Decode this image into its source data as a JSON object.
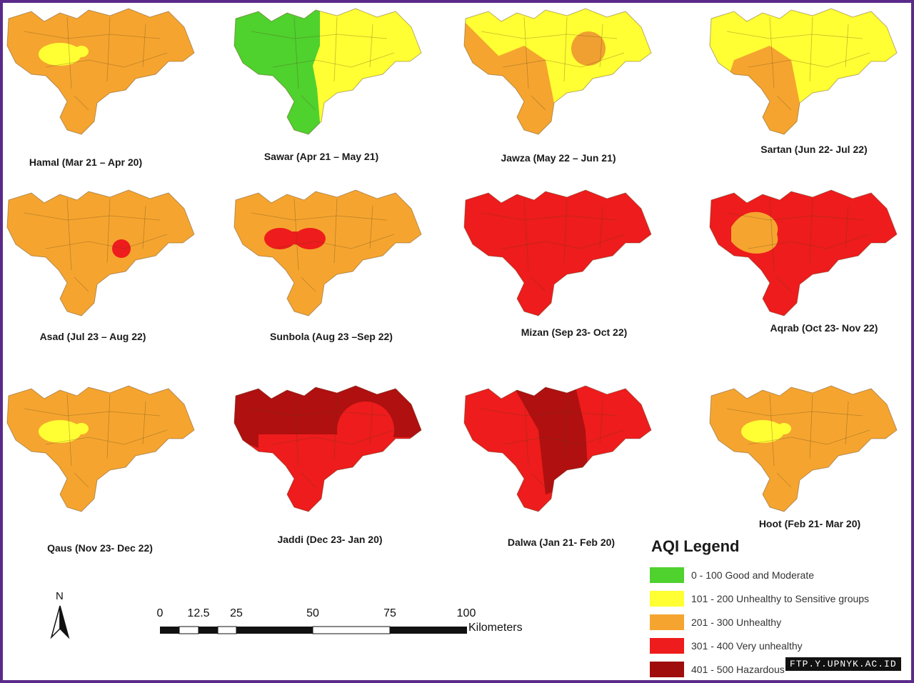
{
  "panels": [
    {
      "caption": "Hamal (Mar 21 – Apr 20)",
      "base": "#f5a52f",
      "overlays": [
        {
          "shape": "blob",
          "color": "#ffff33"
        }
      ]
    },
    {
      "caption": "Sawar (Apr 21 – May 21)",
      "base": "#ffff33",
      "overlays": [
        {
          "shape": "west",
          "color": "#4fd12e"
        }
      ]
    },
    {
      "caption": "Jawza (May 22 – Jun 21)",
      "base": "#ffff33",
      "overlays": [
        {
          "shape": "south",
          "color": "#f5a52f"
        },
        {
          "shape": "nwstrip",
          "color": "#f5a52f"
        },
        {
          "shape": "circle",
          "color": "#f0a030"
        }
      ]
    },
    {
      "caption": "Sartan (Jun 22- Jul 22)",
      "base": "#ffff33",
      "overlays": [
        {
          "shape": "south",
          "color": "#f5a52f"
        }
      ]
    },
    {
      "caption": "Asad (Jul 23 – Aug 22)",
      "base": "#f5a52f",
      "overlays": [
        {
          "shape": "dot",
          "color": "#ee1c1c"
        }
      ]
    },
    {
      "caption": "Sunbola (Aug 23 –Sep 22)",
      "base": "#f5a52f",
      "overlays": [
        {
          "shape": "peanut",
          "color": "#ee1c1c"
        }
      ]
    },
    {
      "caption": "Mizan (Sep 23- Oct 22)",
      "base": "#ee1c1c",
      "overlays": []
    },
    {
      "caption": "Aqrab (Oct 23- Nov 22)",
      "base": "#ee1c1c",
      "overlays": [
        {
          "shape": "blobwest",
          "color": "#f5a52f"
        }
      ]
    },
    {
      "caption": "Qaus (Nov 23- Dec 22)",
      "base": "#f5a52f",
      "overlays": [
        {
          "shape": "blob",
          "color": "#ffff33"
        }
      ]
    },
    {
      "caption": "Jaddi (Dec 23- Jan 20)",
      "base": "#ee1c1c",
      "overlays": [
        {
          "shape": "north",
          "color": "#b01010"
        },
        {
          "shape": "circlebig",
          "color": "#ee1c1c"
        }
      ]
    },
    {
      "caption": "Dalwa (Jan 21- Feb 20)",
      "base": "#ee1c1c",
      "overlays": [
        {
          "shape": "band",
          "color": "#b01010"
        }
      ]
    },
    {
      "caption": "Hoot (Feb 21- Mar 20)",
      "base": "#f5a52f",
      "overlays": [
        {
          "shape": "blob",
          "color": "#ffff33"
        }
      ]
    }
  ],
  "legend": {
    "title": "AQI Legend",
    "items": [
      {
        "label": "0 - 100 Good and Moderate",
        "color": "#4fd12e"
      },
      {
        "label": "101 - 200 Unhealthy to Sensitive groups",
        "color": "#ffff33"
      },
      {
        "label": "201 - 300 Unhealthy",
        "color": "#f5a52f"
      },
      {
        "label": "301 - 400 Very unhealthy",
        "color": "#ee1c1c"
      },
      {
        "label": "401 - 500 Hazardous",
        "color": "#a00d0d"
      }
    ]
  },
  "north": {
    "label": "N"
  },
  "scale": {
    "ticks": [
      "0",
      "12.5",
      "25",
      "50",
      "75",
      "100"
    ],
    "unit": "Kilometers"
  },
  "watermark": "FTP.Y.UPNYK.AC.ID"
}
